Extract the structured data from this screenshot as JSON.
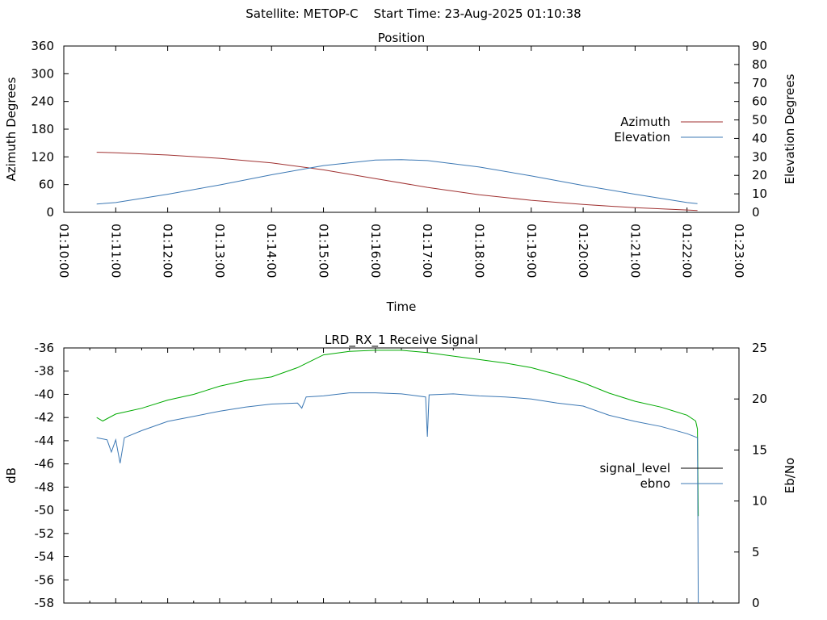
{
  "main_title": "Satellite: METOP-C    Start Time: 23-Aug-2025 01:10:38",
  "chart_data": [
    {
      "type": "line",
      "title": "Position",
      "xlabel": "Time",
      "ylabel": "Azimuth Degrees",
      "y2label": "Elevation Degrees",
      "xlim": [
        "01:10:00",
        "01:23:00"
      ],
      "ylim": [
        0,
        360
      ],
      "y2lim": [
        0,
        90
      ],
      "x_ticks": [
        "01:10:00",
        "01:11:00",
        "01:12:00",
        "01:13:00",
        "01:14:00",
        "01:15:00",
        "01:16:00",
        "01:17:00",
        "01:18:00",
        "01:19:00",
        "01:20:00",
        "01:21:00",
        "01:22:00",
        "01:23:00"
      ],
      "y_ticks": [
        "0",
        "60",
        "120",
        "180",
        "240",
        "300",
        "360"
      ],
      "y2_ticks": [
        "0",
        "10",
        "20",
        "30",
        "40",
        "50",
        "60",
        "70",
        "80",
        "90"
      ],
      "legend_position": "right",
      "series": [
        {
          "name": "Azimuth",
          "axis": "y",
          "color": "#a03232",
          "x": [
            "01:10:38",
            "01:11:00",
            "01:12:00",
            "01:13:00",
            "01:14:00",
            "01:15:00",
            "01:16:00",
            "01:17:00",
            "01:18:00",
            "01:19:00",
            "01:20:00",
            "01:21:00",
            "01:22:00",
            "01:22:12"
          ],
          "y": [
            130,
            129,
            124,
            117,
            107,
            92,
            73,
            54,
            38,
            26,
            17,
            10,
            5,
            4
          ]
        },
        {
          "name": "Elevation",
          "axis": "y2",
          "color": "#3c78b4",
          "x": [
            "01:10:38",
            "01:11:00",
            "01:12:00",
            "01:13:00",
            "01:14:00",
            "01:15:00",
            "01:16:00",
            "01:16:30",
            "01:17:00",
            "01:18:00",
            "01:19:00",
            "01:20:00",
            "01:21:00",
            "01:22:00",
            "01:22:12"
          ],
          "y": [
            4.5,
            5.3,
            9.8,
            14.8,
            20.3,
            25.3,
            28.3,
            28.5,
            28.0,
            24.5,
            19.7,
            14.5,
            9.8,
            5.3,
            4.7
          ]
        }
      ]
    },
    {
      "type": "line",
      "title": "LRD_RX_1 Receive Signal",
      "xlabel": "",
      "ylabel": "dB",
      "y2label": "Eb/No",
      "xlim": [
        "01:10:00",
        "01:23:00"
      ],
      "ylim": [
        -58,
        -36
      ],
      "y2lim": [
        0,
        25
      ],
      "y_ticks": [
        "-36",
        "-38",
        "-40",
        "-42",
        "-44",
        "-46",
        "-48",
        "-50",
        "-52",
        "-54",
        "-56",
        "-58"
      ],
      "y2_ticks": [
        "0",
        "5",
        "10",
        "15",
        "20",
        "25"
      ],
      "legend_position": "right",
      "series": [
        {
          "name": "signal_level",
          "axis": "y",
          "color": "#00aa00",
          "legend_color": "#000000",
          "x": [
            "01:10:38",
            "01:10:45",
            "01:11:00",
            "01:11:30",
            "01:12:00",
            "01:12:30",
            "01:13:00",
            "01:13:30",
            "01:14:00",
            "01:14:30",
            "01:15:00",
            "01:15:30",
            "01:16:00",
            "01:16:30",
            "01:17:00",
            "01:17:30",
            "01:18:00",
            "01:18:30",
            "01:19:00",
            "01:19:30",
            "01:20:00",
            "01:20:30",
            "01:21:00",
            "01:21:30",
            "01:22:00",
            "01:22:10",
            "01:22:12",
            "01:22:13"
          ],
          "y": [
            -42.0,
            -42.3,
            -41.7,
            -41.2,
            -40.5,
            -40.0,
            -39.3,
            -38.8,
            -38.5,
            -37.7,
            -36.6,
            -36.3,
            -36.2,
            -36.2,
            -36.4,
            -36.7,
            -37.0,
            -37.3,
            -37.7,
            -38.3,
            -39.0,
            -39.9,
            -40.6,
            -41.1,
            -41.8,
            -42.3,
            -43.0,
            -50.5
          ]
        },
        {
          "name": "ebno",
          "axis": "y2",
          "color": "#3c78b4",
          "x": [
            "01:10:38",
            "01:10:50",
            "01:10:55",
            "01:11:00",
            "01:11:05",
            "01:11:10",
            "01:11:30",
            "01:12:00",
            "01:12:30",
            "01:13:00",
            "01:13:30",
            "01:14:00",
            "01:14:30",
            "01:14:35",
            "01:14:40",
            "01:15:00",
            "01:15:30",
            "01:16:00",
            "01:16:30",
            "01:16:58",
            "01:17:00",
            "01:17:02",
            "01:17:30",
            "01:18:00",
            "01:18:30",
            "01:19:00",
            "01:19:30",
            "01:20:00",
            "01:20:30",
            "01:21:00",
            "01:21:30",
            "01:22:00",
            "01:22:12",
            "01:22:13"
          ],
          "y": [
            16.2,
            16.0,
            14.8,
            16.0,
            13.7,
            16.2,
            16.9,
            17.8,
            18.3,
            18.8,
            19.2,
            19.5,
            19.6,
            19.1,
            20.2,
            20.3,
            20.6,
            20.6,
            20.5,
            20.2,
            16.3,
            20.4,
            20.5,
            20.3,
            20.2,
            20.0,
            19.6,
            19.3,
            18.4,
            17.8,
            17.3,
            16.6,
            16.2,
            0.0
          ]
        }
      ]
    }
  ]
}
